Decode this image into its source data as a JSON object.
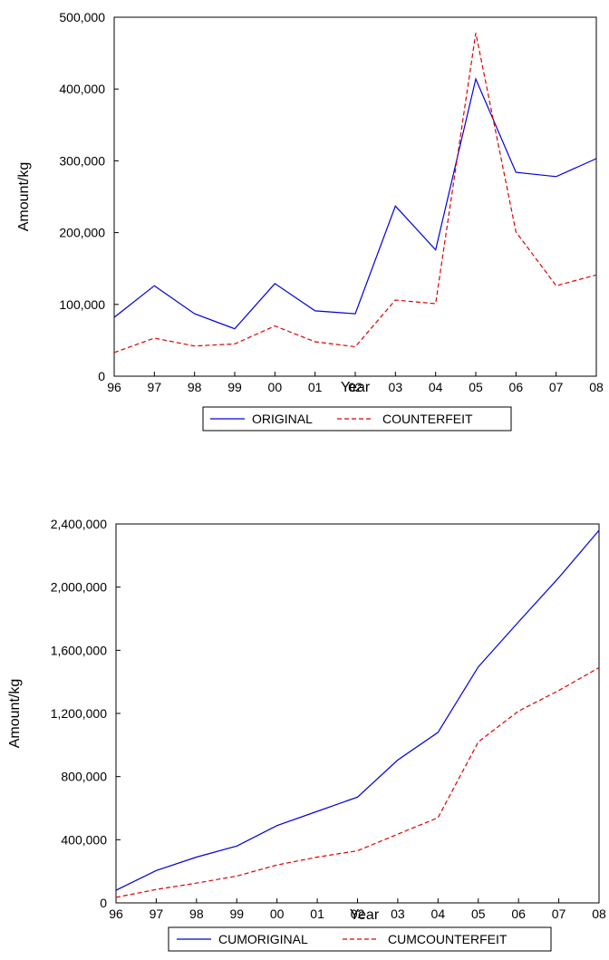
{
  "chart_data": [
    {
      "type": "line",
      "title": "",
      "xlabel": "Year",
      "ylabel": "Amount/kg",
      "categories": [
        "96",
        "97",
        "98",
        "99",
        "00",
        "01",
        "02",
        "03",
        "04",
        "05",
        "06",
        "07",
        "08"
      ],
      "ylim": [
        0,
        500000
      ],
      "yticks": [
        0,
        100000,
        200000,
        300000,
        400000,
        500000
      ],
      "ytick_labels": [
        "0",
        "100,000",
        "200,000",
        "300,000",
        "400,000",
        "500,000"
      ],
      "grid": false,
      "legend_position": "bottom",
      "series": [
        {
          "name": "ORIGINAL",
          "color": "#0000dd",
          "dash": "solid",
          "values": [
            82000,
            126000,
            87000,
            66000,
            129000,
            91000,
            87000,
            237000,
            176000,
            414000,
            284000,
            278000,
            303000
          ]
        },
        {
          "name": "COUNTERFEIT",
          "color": "#dd0000",
          "dash": "dashed",
          "values": [
            33000,
            53000,
            42000,
            45000,
            70000,
            48000,
            41000,
            106000,
            101000,
            478000,
            201000,
            126000,
            141000
          ]
        }
      ]
    },
    {
      "type": "line",
      "title": "",
      "xlabel": "Year",
      "ylabel": "Amount/kg",
      "categories": [
        "96",
        "97",
        "98",
        "99",
        "00",
        "01",
        "02",
        "03",
        "04",
        "05",
        "06",
        "07",
        "08"
      ],
      "ylim": [
        0,
        2400000
      ],
      "yticks": [
        0,
        400000,
        800000,
        1200000,
        1600000,
        2000000,
        2400000
      ],
      "ytick_labels": [
        "0",
        "400,000",
        "800,000",
        "1,200,000",
        "1,600,000",
        "2,000,000",
        "2,400,000"
      ],
      "grid": false,
      "legend_position": "bottom",
      "series": [
        {
          "name": "CUMORIGINAL",
          "color": "#0000dd",
          "dash": "solid",
          "values": [
            80000,
            205000,
            290000,
            360000,
            490000,
            580000,
            670000,
            905000,
            1080000,
            1495000,
            1780000,
            2060000,
            2360000
          ]
        },
        {
          "name": "CUMCOUNTERFEIT",
          "color": "#dd0000",
          "dash": "dashed",
          "values": [
            35000,
            85000,
            125000,
            170000,
            240000,
            290000,
            330000,
            435000,
            540000,
            1020000,
            1215000,
            1345000,
            1490000
          ]
        }
      ]
    }
  ]
}
